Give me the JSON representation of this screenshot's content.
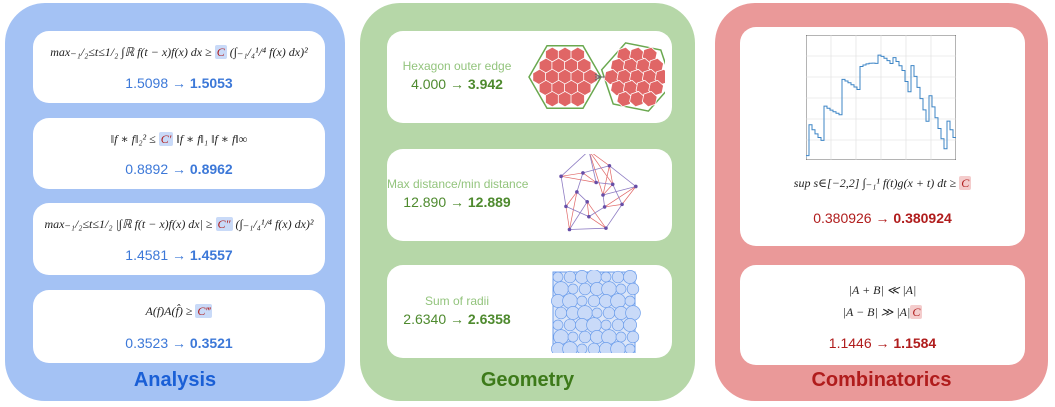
{
  "arrow": "→",
  "panels": [
    {
      "title": "Analysis",
      "cards": [
        {
          "formula": [
            [
              "max₋₁/₂≤t≤1/₂ ∫ℝ f(t − x)f(x) dx ≥ ",
              {
                "constant": "C"
              },
              " (∫₋₁/₄¹/⁴ f(x) dx)²"
            ]
          ],
          "from": "1.5098",
          "to": "1.5053"
        },
        {
          "formula": [
            [
              "‖f ∗ f‖₂² ≤ ",
              {
                "constant": "C′"
              },
              " ‖f ∗ f‖₁ ‖f ∗ f‖∞"
            ]
          ],
          "from": "0.8892",
          "to": "0.8962"
        },
        {
          "formula": [
            [
              "max₋₁/₂≤t≤1/₂ |∫ℝ f(t − x)f(x) dx| ≥ ",
              {
                "constant": "C″"
              },
              " (∫₋₁/₄¹/⁴ f(x) dx)²"
            ]
          ],
          "from": "1.4581",
          "to": "1.4557"
        },
        {
          "formula": [
            [
              "A(f)A(f̂) ≥ ",
              {
                "constant": "C‴"
              }
            ]
          ],
          "from": "0.3523",
          "to": "0.3521"
        }
      ]
    },
    {
      "title": "Geometry",
      "cards": [
        {
          "label": "Hexagon outer edge",
          "from": "4.000",
          "to": "3.942"
        },
        {
          "label": "Max distance/min distance",
          "from": "12.890",
          "to": "12.889"
        },
        {
          "label": "Sum of radii",
          "from": "2.6340",
          "to": "2.6358"
        }
      ]
    },
    {
      "title": "Combinatorics",
      "cards": [
        {
          "formula": [
            [
              "sup s∈[−2,2] ∫₋₁¹ f(t)g(x + t) dt ≥ ",
              {
                "constant": "C"
              }
            ]
          ],
          "from": "0.380926",
          "to": "0.380924"
        },
        {
          "formula": [
            [
              "|A + B| ≪ |A|"
            ],
            [
              "|A − B| ≫ |A|",
              {
                "constant": "C"
              }
            ]
          ],
          "from": "1.1446",
          "to": "1.1584"
        }
      ]
    }
  ]
}
